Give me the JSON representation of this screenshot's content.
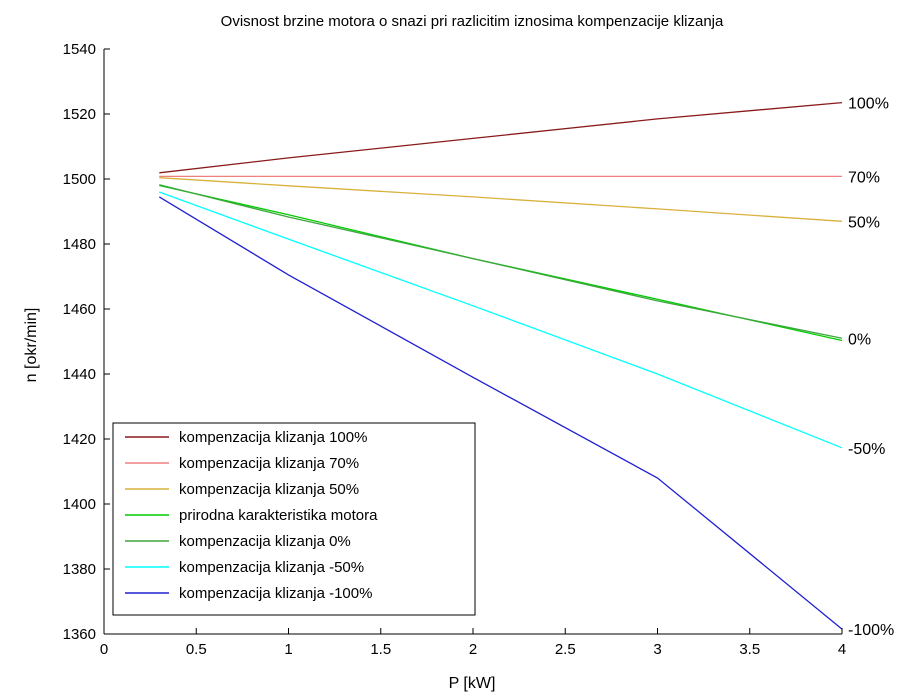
{
  "chart_data": {
    "type": "line",
    "title": "Ovisnost brzine motora o snazi pri razlicitim iznosima kompenzacije klizanja",
    "xlabel": "P [kW]",
    "ylabel": "n [okr/min]",
    "xlim": [
      0,
      4
    ],
    "ylim": [
      1360,
      1540
    ],
    "xticks": [
      0,
      0.5,
      1,
      1.5,
      2,
      2.5,
      3,
      3.5,
      4
    ],
    "xtick_labels": [
      "0",
      "0.5",
      "1",
      "1.5",
      "2",
      "2.5",
      "3",
      "3.5",
      "4"
    ],
    "yticks": [
      1360,
      1380,
      1400,
      1420,
      1440,
      1460,
      1480,
      1500,
      1520,
      1540
    ],
    "ytick_labels": [
      "1360",
      "1380",
      "1400",
      "1420",
      "1440",
      "1460",
      "1480",
      "1500",
      "1520",
      "1540"
    ],
    "grid": false,
    "legend_position": "bottom-left",
    "series": [
      {
        "name": "kompenzacija klizanja 100%",
        "color": "#8b1a1a",
        "x": [
          0.3,
          1,
          2,
          3,
          4
        ],
        "y": [
          1501.9,
          1506.5,
          1512.5,
          1518.5,
          1523.5
        ],
        "end_label": "100%"
      },
      {
        "name": "kompenzacija klizanja 70%",
        "color": "#f08080",
        "x": [
          0.3,
          1,
          2,
          3,
          4
        ],
        "y": [
          1500.8,
          1500.8,
          1500.8,
          1500.8,
          1500.8
        ],
        "end_label": "70%"
      },
      {
        "name": "kompenzacija klizanja 50%",
        "color": "#d9b13b",
        "x": [
          0.3,
          1,
          2,
          3,
          4
        ],
        "y": [
          1500.4,
          1497.9,
          1494.5,
          1490.8,
          1487.0
        ],
        "end_label": "50%"
      },
      {
        "name": "prirodna karakteristika motora",
        "color": "#00cc00",
        "x": [
          0.3,
          1,
          2,
          3,
          4
        ],
        "y": [
          1498.0,
          1489.0,
          1475.5,
          1463.0,
          1450.3
        ],
        "end_label": ""
      },
      {
        "name": "kompenzacija klizanja 0%",
        "color": "#3da63d",
        "x": [
          0.3,
          1,
          2,
          3,
          4
        ],
        "y": [
          1498.2,
          1488.3,
          1475.5,
          1462.5,
          1451.0
        ],
        "end_label": "0%"
      },
      {
        "name": "kompenzacija klizanja -50%",
        "color": "#00ffff",
        "x": [
          0.3,
          1,
          2,
          3,
          4
        ],
        "y": [
          1496.0,
          1481.5,
          1461.0,
          1440.0,
          1417.3
        ],
        "end_label": "-50%"
      },
      {
        "name": "kompenzacija klizanja -100%",
        "color": "#2020d0",
        "x": [
          0.3,
          1,
          2,
          3,
          4
        ],
        "y": [
          1494.5,
          1470.5,
          1439.0,
          1408.0,
          1361.5
        ],
        "end_label": "-100%"
      }
    ]
  }
}
